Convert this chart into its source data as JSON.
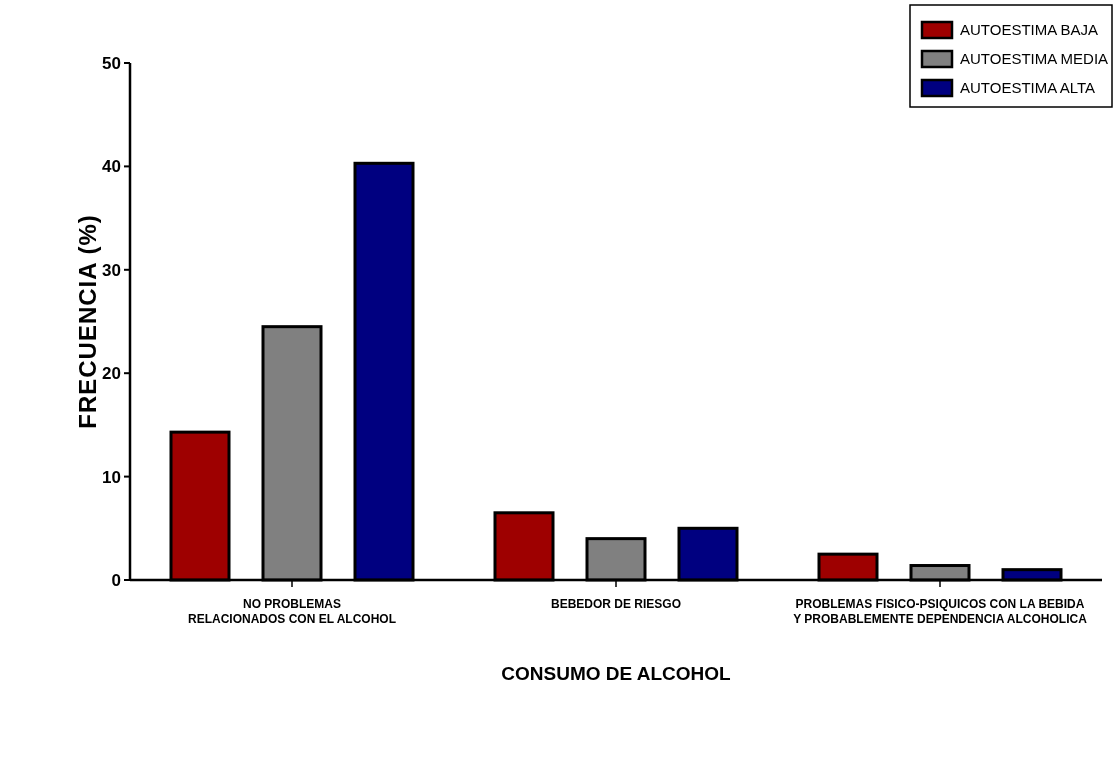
{
  "chart_data": {
    "type": "bar",
    "xlabel": "CONSUMO DE ALCOHOL",
    "ylabel": "FRECUENCIA (%)",
    "categories": [
      "NO PROBLEMAS RELACIONADOS CON EL ALCOHOL",
      "BEBEDOR DE RIESGO",
      "PROBLEMAS FISICO-PSIQUICOS CON LA BEBIDA Y PROBABLEMENTE DEPENDENCIA ALCOHOLICA"
    ],
    "series": [
      {
        "name": "AUTOESTIMA BAJA",
        "color": "#9e0000",
        "values": [
          14.3,
          6.5,
          2.5
        ]
      },
      {
        "name": "AUTOESTIMA MEDIA",
        "color": "#808080",
        "values": [
          24.5,
          4.0,
          1.4
        ]
      },
      {
        "name": "AUTOESTIMA ALTA",
        "color": "#000080",
        "values": [
          40.3,
          5.0,
          1.0
        ]
      }
    ],
    "ylim": [
      0,
      50
    ],
    "yticks": [
      0,
      10,
      20,
      30,
      40,
      50
    ],
    "grid": false,
    "legend": "top right"
  }
}
